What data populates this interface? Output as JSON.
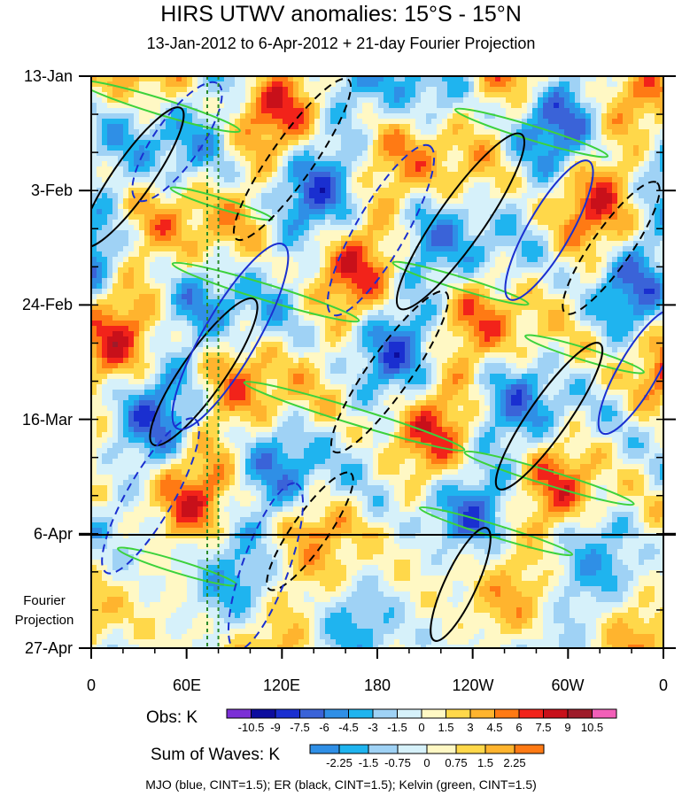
{
  "chart_data": {
    "type": "heatmap",
    "title": "HIRS UTWV anomalies: 15°S - 15°N",
    "subtitle": "13-Jan-2012 to 6-Apr-2012 + 21-day Fourier Projection",
    "x_tick_labels": [
      "0",
      "60E",
      "120E",
      "180",
      "120W",
      "60W",
      "0"
    ],
    "x_range": [
      0,
      360
    ],
    "y_tick_labels": [
      "13-Jan",
      "3-Feb",
      "24-Feb",
      "16-Mar",
      "6-Apr",
      "27-Apr"
    ],
    "y_range": [
      "13-Jan-2012",
      "27-Apr-2012"
    ],
    "projection_start": "6-Apr",
    "projection_label": "Fourier Projection",
    "reference_lines_longitude": [
      73,
      80
    ],
    "obs_colorbar": {
      "title": "Obs: K",
      "levels": [
        "-10.5",
        "-9",
        "-7.5",
        "-6",
        "-4.5",
        "-3",
        "-1.5",
        "0",
        "1.5",
        "3",
        "4.5",
        "6",
        "7.5",
        "9",
        "10.5"
      ],
      "colors": [
        "#7b2fd6",
        "#0d0d9e",
        "#1a2fd0",
        "#3a63d8",
        "#2f8fe6",
        "#1fb4ef",
        "#9fd2f5",
        "#d6f1fa",
        "#fff8c4",
        "#ffd84a",
        "#ffb42e",
        "#ff7a14",
        "#f2231a",
        "#c8101a",
        "#9e1b2a",
        "#f25fb8"
      ]
    },
    "waves_colorbar": {
      "title": "Sum of Waves: K",
      "levels": [
        "-2.25",
        "-1.5",
        "-0.75",
        "0",
        "0.75",
        "1.5",
        "2.25"
      ],
      "colors": [
        "#2f8fe6",
        "#1fb4ef",
        "#9fd2f5",
        "#d6f1fa",
        "#fff8c4",
        "#ffd84a",
        "#ffb42e",
        "#ff7a14"
      ]
    },
    "contour_legend": "MJO (blue, CINT=1.5); ER (black, CINT=1.5); Kelvin (green, CINT=1.5)"
  }
}
